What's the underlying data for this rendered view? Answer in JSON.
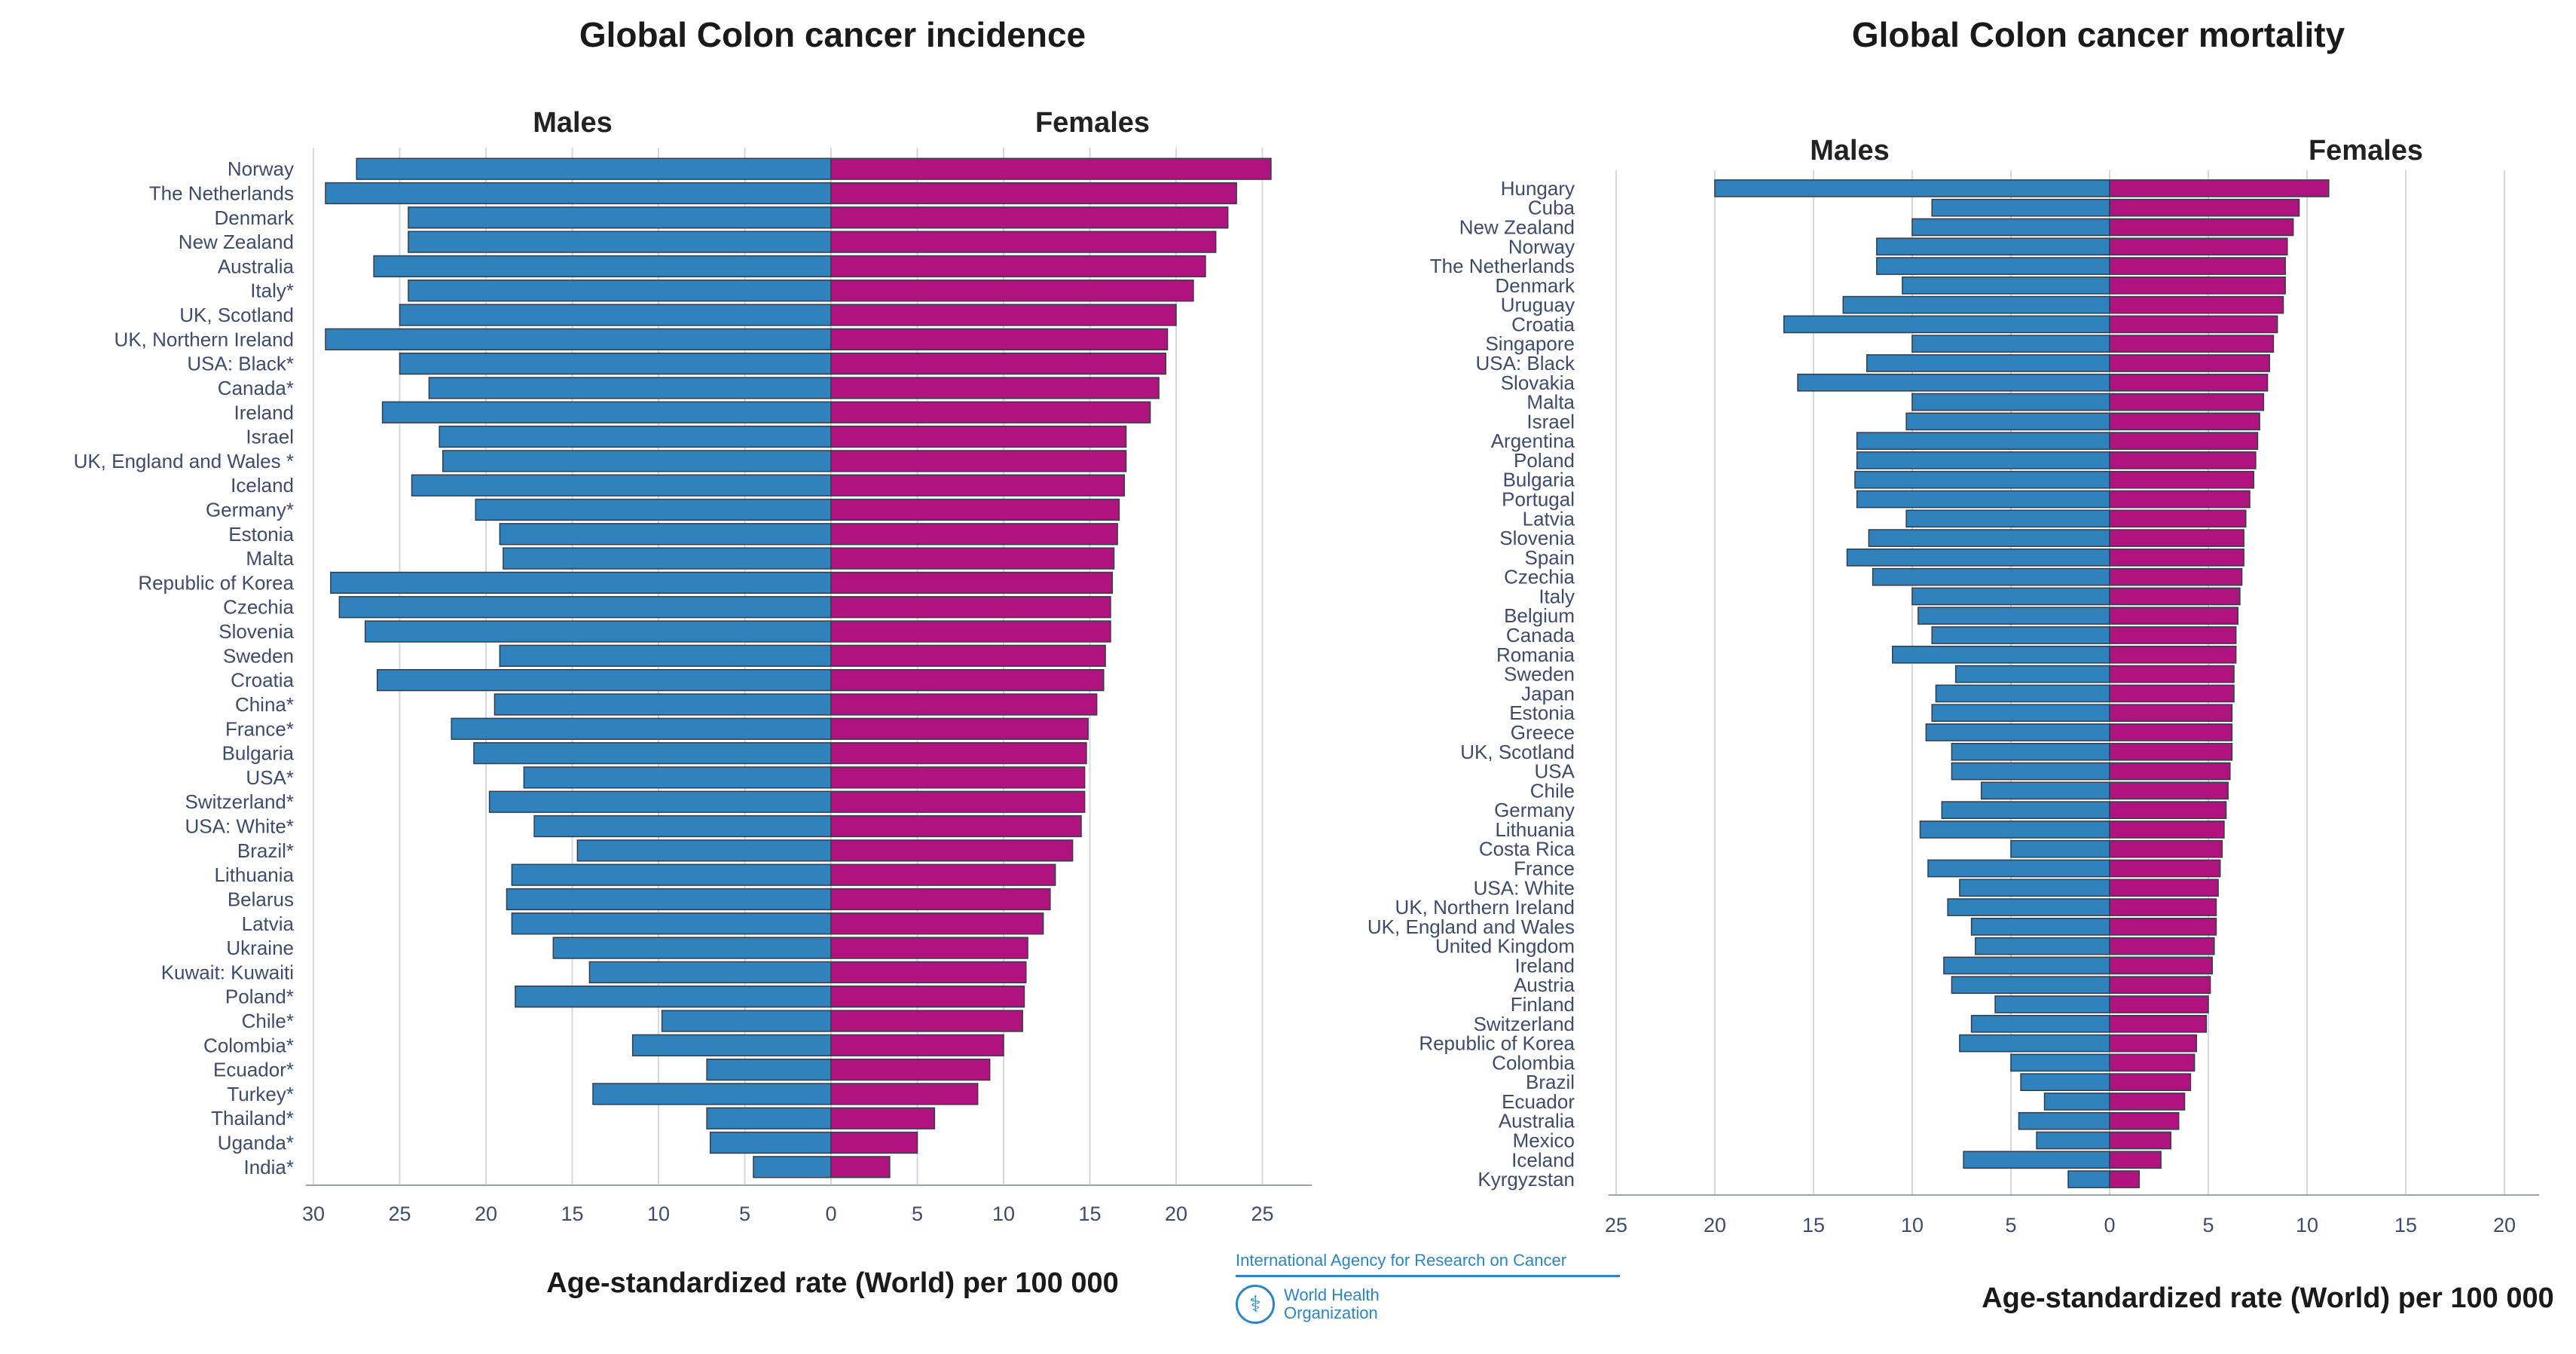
{
  "chart_data": [
    {
      "type": "bar",
      "orientation": "horizontal-diverging",
      "title": "Global Colon cancer incidence",
      "left_label": "Males",
      "right_label": "Females",
      "xlabel": "Age-standardized rate (World) per 100 000",
      "xlim_males": [
        0,
        30
      ],
      "xlim_females": [
        0,
        27
      ],
      "male_ticks": [
        "30",
        "25",
        "20",
        "15",
        "10",
        "5",
        "0"
      ],
      "female_ticks": [
        "5",
        "10",
        "15",
        "20",
        "25"
      ],
      "grid": true,
      "categories": [
        "Norway",
        "The Netherlands",
        "Denmark",
        "New Zealand",
        "Australia",
        "Italy*",
        "UK, Scotland",
        "UK, Northern Ireland",
        "USA: Black*",
        "Canada*",
        "Ireland",
        "Israel",
        "UK, England and Wales *",
        "Iceland",
        "Germany*",
        "Estonia",
        "Malta",
        "Republic of Korea",
        "Czechia",
        "Slovenia",
        "Sweden",
        "Croatia",
        "China*",
        "France*",
        "Bulgaria",
        "USA*",
        "Switzerland*",
        "USA: White*",
        "Brazil*",
        "Lithuania",
        "Belarus",
        "Latvia",
        "Ukraine",
        "Kuwait: Kuwaiti",
        "Poland*",
        "Chile*",
        "Colombia*",
        "Ecuador*",
        "Turkey*",
        "Thailand*",
        "Uganda*",
        "India*"
      ],
      "series": [
        {
          "name": "Males",
          "values": [
            27.5,
            29.3,
            24.5,
            24.5,
            26.5,
            24.5,
            25.0,
            29.3,
            25.0,
            23.3,
            26.0,
            22.7,
            22.5,
            24.3,
            20.6,
            19.2,
            19.0,
            29.0,
            28.5,
            27.0,
            19.2,
            26.3,
            19.5,
            22.0,
            20.7,
            17.8,
            19.8,
            17.2,
            14.7,
            18.5,
            18.8,
            18.5,
            16.1,
            14.0,
            18.3,
            9.8,
            11.5,
            7.2,
            13.8,
            7.2,
            7.0,
            4.5
          ]
        },
        {
          "name": "Females",
          "values": [
            25.5,
            23.5,
            23.0,
            22.3,
            21.7,
            21.0,
            20.0,
            19.5,
            19.4,
            19.0,
            18.5,
            17.1,
            17.1,
            17.0,
            16.7,
            16.6,
            16.4,
            16.3,
            16.2,
            16.2,
            15.9,
            15.8,
            15.4,
            14.9,
            14.8,
            14.7,
            14.7,
            14.5,
            14.0,
            13.0,
            12.7,
            12.3,
            11.4,
            11.3,
            11.2,
            11.1,
            10.0,
            9.2,
            8.5,
            6.0,
            5.0,
            3.4
          ]
        }
      ]
    },
    {
      "type": "bar",
      "orientation": "horizontal-diverging",
      "title": "Global Colon cancer mortality",
      "left_label": "Males",
      "right_label": "Females",
      "xlabel": "Age-standardized rate (World) per 100 000",
      "xlim_males": [
        0,
        25
      ],
      "xlim_females": [
        0,
        21
      ],
      "male_ticks": [
        "25",
        "20",
        "15",
        "10",
        "5",
        "0"
      ],
      "female_ticks": [
        "5",
        "10",
        "15",
        "20"
      ],
      "grid": true,
      "categories": [
        "Hungary",
        "Cuba",
        "New Zealand",
        "Norway",
        "The Netherlands",
        "Denmark",
        "Uruguay",
        "Croatia",
        "Singapore",
        "USA: Black",
        "Slovakia",
        "Malta",
        "Israel",
        "Argentina",
        "Poland",
        "Bulgaria",
        "Portugal",
        "Latvia",
        "Slovenia",
        "Spain",
        "Czechia",
        "Italy",
        "Belgium",
        "Canada",
        "Romania",
        "Sweden",
        "Japan",
        "Estonia",
        "Greece",
        "UK, Scotland",
        "USA",
        "Chile",
        "Germany",
        "Lithuania",
        "Costa Rica",
        "France",
        "USA: White",
        "UK, Northern Ireland",
        "UK, England and Wales",
        "United Kingdom",
        "Ireland",
        "Austria",
        "Finland",
        "Switzerland",
        "Republic of Korea",
        "Colombia",
        "Brazil",
        "Ecuador",
        "Australia",
        "Mexico",
        "Iceland",
        "Kyrgyzstan"
      ],
      "series": [
        {
          "name": "Males",
          "values": [
            20.0,
            9.0,
            10.0,
            11.8,
            11.8,
            10.5,
            13.5,
            16.5,
            10.0,
            12.3,
            15.8,
            10.0,
            10.3,
            12.8,
            12.8,
            12.9,
            12.8,
            10.3,
            12.2,
            13.3,
            12.0,
            10.0,
            9.7,
            9.0,
            11.0,
            7.8,
            8.8,
            9.0,
            9.3,
            8.0,
            8.0,
            6.5,
            8.5,
            9.6,
            5.0,
            9.2,
            7.6,
            8.2,
            7.0,
            6.8,
            8.4,
            8.0,
            5.8,
            7.0,
            7.6,
            5.0,
            4.5,
            3.3,
            4.6,
            3.7,
            7.4,
            2.1
          ]
        },
        {
          "name": "Females",
          "values": [
            11.1,
            9.6,
            9.3,
            9.0,
            8.9,
            8.9,
            8.8,
            8.5,
            8.3,
            8.1,
            8.0,
            7.8,
            7.6,
            7.5,
            7.4,
            7.3,
            7.1,
            6.9,
            6.8,
            6.8,
            6.7,
            6.6,
            6.5,
            6.4,
            6.4,
            6.3,
            6.3,
            6.2,
            6.2,
            6.2,
            6.1,
            6.0,
            5.9,
            5.8,
            5.7,
            5.6,
            5.5,
            5.4,
            5.4,
            5.3,
            5.2,
            5.1,
            5.0,
            4.9,
            4.4,
            4.3,
            4.1,
            3.8,
            3.5,
            3.1,
            2.6,
            1.5
          ]
        }
      ]
    }
  ],
  "colors": {
    "males": "#2f82bb",
    "females": "#b0127e",
    "bar_border": "#333d4d",
    "grid": "#d5d9df",
    "text": "#3d4c6e"
  },
  "logo": {
    "iarc": "International Agency for Research on Cancer",
    "who_line1": "World Health",
    "who_line2": "Organization",
    "icon": "who-emblem-icon"
  }
}
